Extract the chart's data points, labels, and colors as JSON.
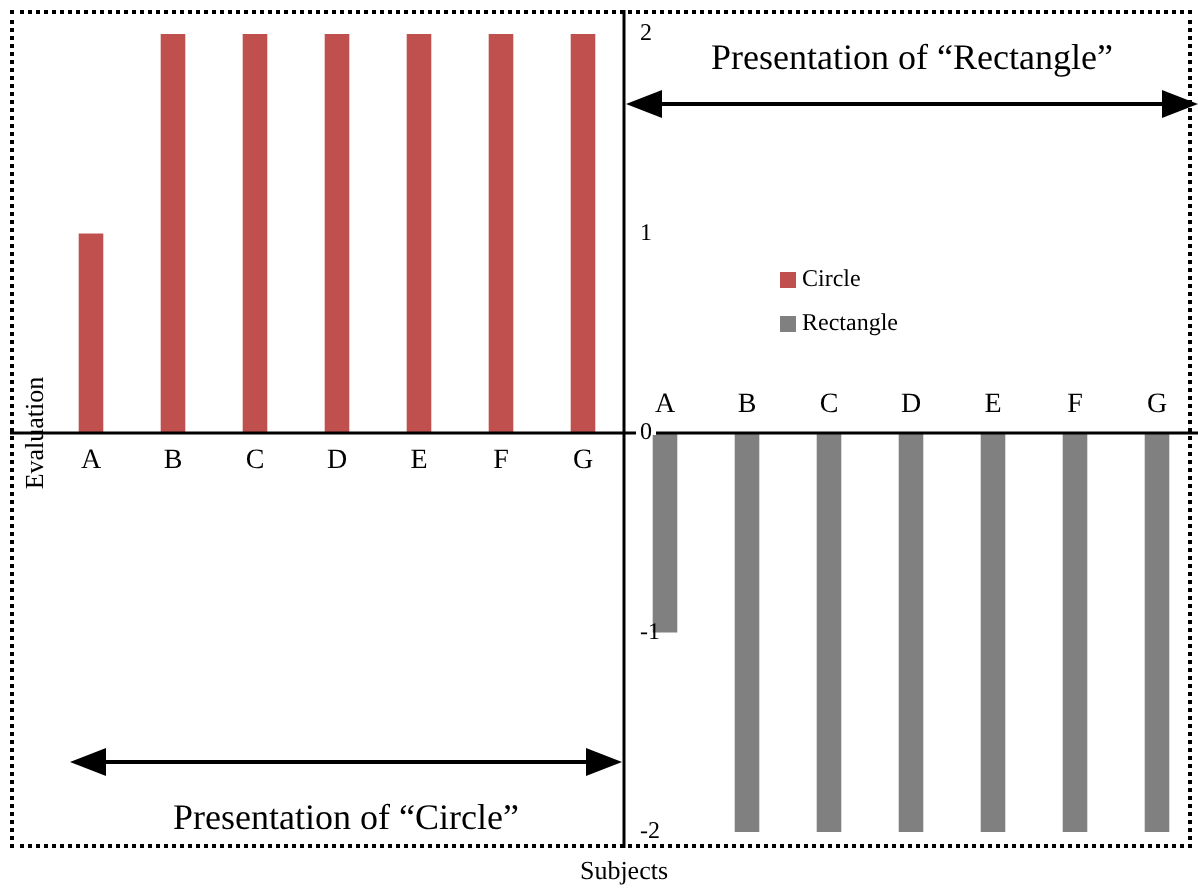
{
  "chart_data": {
    "type": "bar",
    "xlabel": "Subjects",
    "ylabel": "Evaluation",
    "categories": [
      "A",
      "B",
      "C",
      "D",
      "E",
      "F",
      "G",
      "A",
      "B",
      "C",
      "D",
      "E",
      "F",
      "G"
    ],
    "series": [
      {
        "name": "Circle",
        "color": "#c0504d",
        "values": [
          1,
          2,
          2,
          2,
          2,
          2,
          2,
          null,
          null,
          null,
          null,
          null,
          null,
          null
        ]
      },
      {
        "name": "Rectangle",
        "color": "#808080",
        "values": [
          null,
          null,
          null,
          null,
          null,
          null,
          null,
          -1,
          -2,
          -2,
          -2,
          -2,
          -2,
          -2
        ]
      }
    ],
    "ylim": [
      -2,
      2
    ],
    "yticks": [
      -2,
      -1,
      0,
      1,
      2
    ],
    "legend": "top right",
    "annotations": [
      "Presentation of “Rectangle”",
      "Presentation of “Circle”"
    ]
  }
}
